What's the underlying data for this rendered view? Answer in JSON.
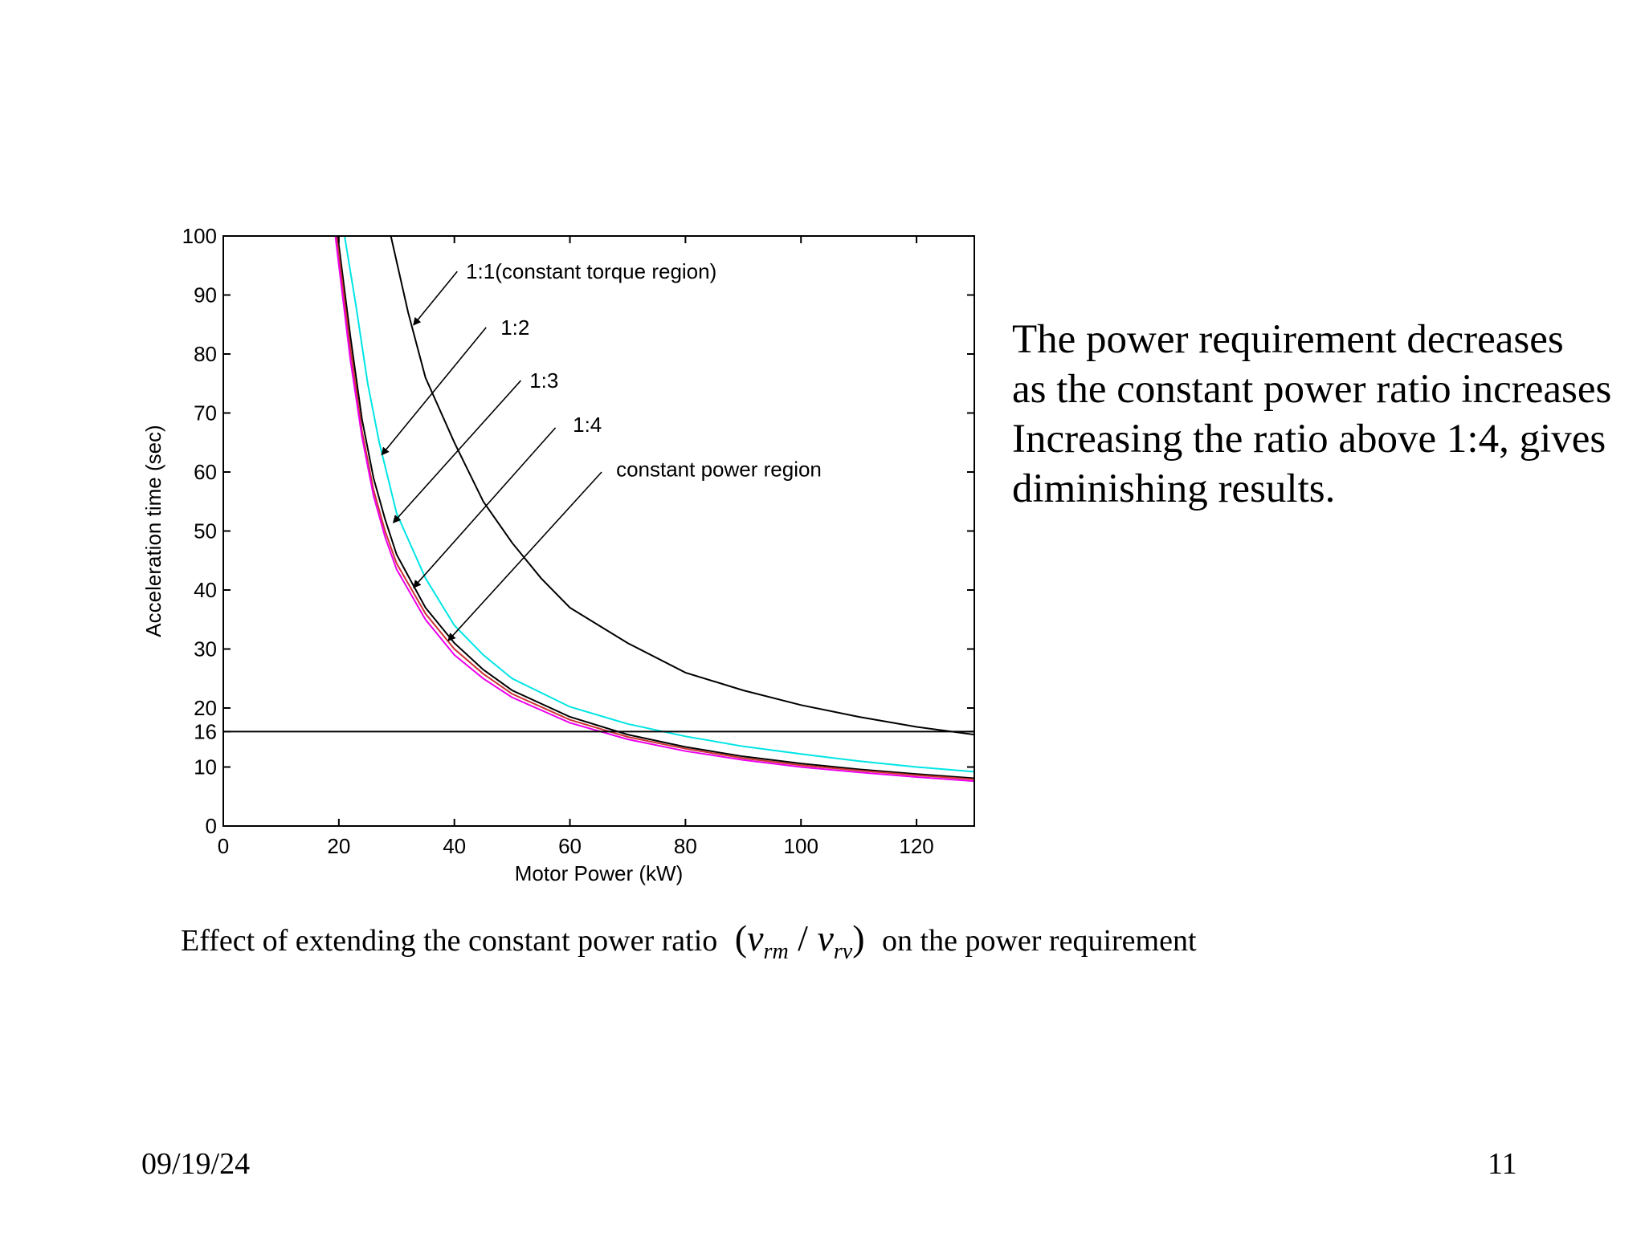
{
  "chart_data": {
    "type": "line",
    "xlabel": "Motor Power (kW)",
    "ylabel": "Acceleration time (sec)",
    "xlim": [
      0,
      130
    ],
    "ylim": [
      0,
      100
    ],
    "xticks": [
      0,
      20,
      40,
      60,
      80,
      100,
      120
    ],
    "yticks": [
      0,
      10,
      16,
      20,
      30,
      40,
      50,
      60,
      70,
      80,
      90,
      100
    ],
    "grid": false,
    "series": [
      {
        "name": "1:1(constant torque region)",
        "color": "#000000",
        "x": [
          29,
          32,
          35,
          40,
          45,
          50,
          55,
          60,
          70,
          80,
          90,
          100,
          110,
          120,
          130
        ],
        "y": [
          100,
          87,
          76,
          65,
          55,
          48,
          42,
          37,
          31,
          26,
          23,
          20.5,
          18.5,
          16.8,
          15.5
        ]
      },
      {
        "name": "1:2",
        "color": "#00e5e5",
        "x": [
          21,
          23,
          25,
          27,
          30,
          35,
          40,
          45,
          50,
          60,
          70,
          80,
          90,
          100,
          110,
          120,
          130
        ],
        "y": [
          100,
          88,
          75,
          65,
          53,
          42,
          34,
          29,
          25,
          20.2,
          17.3,
          15.2,
          13.5,
          12.2,
          11.0,
          10.0,
          9.2
        ]
      },
      {
        "name": "1:3",
        "color": "#000000",
        "x": [
          19.8,
          22,
          24,
          26,
          28,
          30,
          35,
          40,
          45,
          50,
          60,
          70,
          80,
          90,
          100,
          110,
          120,
          130
        ],
        "y": [
          100,
          83,
          69,
          59,
          52,
          46,
          37,
          31,
          26.5,
          23,
          18.5,
          15.5,
          13.4,
          11.8,
          10.6,
          9.6,
          8.8,
          8.1
        ]
      },
      {
        "name": "1:4",
        "color": "#cc3333",
        "x": [
          19.6,
          22,
          24,
          26,
          28,
          30,
          35,
          40,
          45,
          50,
          60,
          70,
          80,
          90,
          100,
          110,
          120,
          130
        ],
        "y": [
          100,
          81,
          67,
          57,
          50,
          44.5,
          36,
          30,
          25.8,
          22.4,
          18,
          15.1,
          13.1,
          11.5,
          10.3,
          9.4,
          8.6,
          7.9
        ]
      },
      {
        "name": "constant power region",
        "color": "#ee00ee",
        "x": [
          19.4,
          22,
          24,
          26,
          28,
          30,
          35,
          40,
          45,
          50,
          60,
          70,
          80,
          90,
          100,
          110,
          120,
          130
        ],
        "y": [
          100,
          79,
          66,
          56,
          49,
          43.5,
          35,
          29,
          25,
          21.8,
          17.5,
          14.7,
          12.7,
          11.2,
          10.0,
          9.1,
          8.3,
          7.6
        ]
      }
    ],
    "reference_line": {
      "y": 16
    },
    "annotations": [
      {
        "text": "1:1(constant torque region)",
        "text_at": [
          42,
          94
        ],
        "line_from": [
          40.5,
          94
        ],
        "arrow_to": [
          33,
          85
        ]
      },
      {
        "text": "1:2",
        "text_at": [
          48,
          84.5
        ],
        "line_from": [
          45.5,
          84.5
        ],
        "arrow_to": [
          27.5,
          63
        ]
      },
      {
        "text": "1:3",
        "text_at": [
          53,
          75.5
        ],
        "line_from": [
          51.5,
          75.5
        ],
        "arrow_to": [
          29.5,
          51.5
        ]
      },
      {
        "text": "1:4",
        "text_at": [
          60.5,
          68
        ],
        "line_from": [
          57.5,
          67.5
        ],
        "arrow_to": [
          33,
          40.5
        ]
      },
      {
        "text": "constant power region",
        "text_at": [
          68,
          60.5
        ],
        "line_from": [
          65.5,
          60
        ],
        "arrow_to": [
          39,
          31.5
        ]
      }
    ]
  },
  "slide": {
    "side_text": [
      "The power requirement decreases",
      "as the constant power ratio increases",
      "Increasing the ratio above 1:4, gives",
      "diminishing results."
    ],
    "caption_prefix": "Effect of extending the constant power ratio",
    "caption_open": "(",
    "caption_v1": "v",
    "caption_sub1": "rm",
    "caption_slash": " / ",
    "caption_v2": "v",
    "caption_sub2": "rv",
    "caption_close": ")",
    "caption_suffix": "on the power requirement",
    "date": "09/19/24",
    "page_number": "11"
  }
}
